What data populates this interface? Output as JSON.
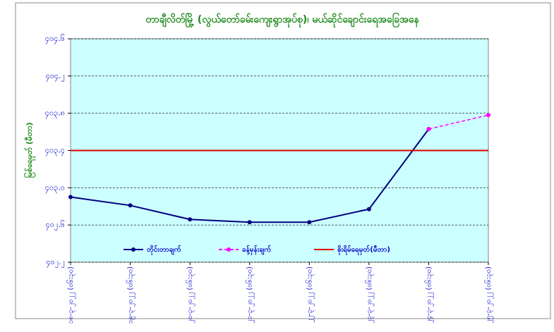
{
  "chart_data": {
    "type": "line",
    "title": "တာချီလိတ်မြို့ (လွယ်တော်ခမ်းကျေးရွာအုပ်စု)၊ မယ်ဆိုင်ချောင်းရေအခြေအနေ",
    "y_label": "မြစ်ရေမှတ် (မီတာ)",
    "categories": [
      "၁၈-၃-၂၀၂၂ (၀၆:၃၀)",
      "၁၉-၃-၂၀၂၂ (၀၆:၃၀)",
      "၂၀-၃-၂၀၂၂ (၀၆:၃၀)",
      "၂၁-၃-၂၀၂၂ (၀၆:၃၀)",
      "၂၂-၃-၂၀၂၂ (၀၆:၃၀)",
      "၂၃-၃-၂၀၂၂ (၀၆:၃၀)",
      "၂၄-၃-၂၀၂၂ (၀၆:၃၀)",
      "၂၅-၃-၂၀၂၂ (၀၆:၃၀)"
    ],
    "series": [
      {
        "name": "တိုင်းတာချက်",
        "color": "#000080",
        "style": "solid",
        "markers": true,
        "values": [
          402.9,
          402.81,
          402.66,
          402.63,
          402.63,
          402.77,
          403.63,
          null
        ]
      },
      {
        "name": "ခန့်မှန်းချက်",
        "color": "#ff00ff",
        "style": "dashed",
        "markers": true,
        "values": [
          null,
          null,
          null,
          null,
          null,
          null,
          403.63,
          403.78
        ]
      },
      {
        "name": "စိုးရိမ်ရေမှတ်(မီတာ)",
        "color": "#e00000",
        "style": "solid",
        "markers": false,
        "values": [
          403.4,
          403.4,
          403.4,
          403.4,
          403.4,
          403.4,
          403.4,
          403.4
        ]
      }
    ],
    "ylim": [
      402.2,
      404.6
    ],
    "yticks": [
      {
        "value": 402.2,
        "label": "၄၀၂.၂"
      },
      {
        "value": 402.6,
        "label": "၄၀၂.၆"
      },
      {
        "value": 403.0,
        "label": "၄၀၃.၀"
      },
      {
        "value": 403.4,
        "label": "၄၀၃.၄"
      },
      {
        "value": 403.8,
        "label": "၄၀၃.၈"
      },
      {
        "value": 404.2,
        "label": "၄၀၄.၂"
      },
      {
        "value": 404.6,
        "label": "၄၀၄.၆"
      }
    ],
    "grid": true,
    "legend": "bottom",
    "plot_background": "#ccffff"
  }
}
